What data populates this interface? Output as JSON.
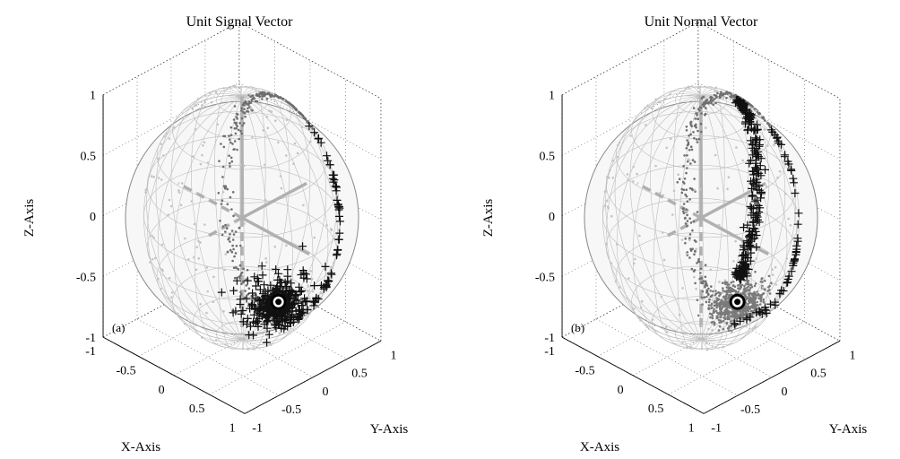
{
  "chart_data": [
    {
      "type": "scatter",
      "subtype": "3d-sphere",
      "panel_label": "(a)",
      "title": "Unit Signal Vector",
      "xlabel": "X-Axis",
      "ylabel": "Y-Axis",
      "zlabel": "Z-Axis",
      "xlim": [
        -1,
        1
      ],
      "ylim": [
        -1,
        1
      ],
      "zlim": [
        -1,
        1
      ],
      "x_ticks": [
        "-1",
        "-0.5",
        "0",
        "0.5",
        "1"
      ],
      "y_ticks": [
        "-1",
        "-0.5",
        "0",
        "0.5",
        "1"
      ],
      "z_ticks": [
        "-1",
        "-0.5",
        "0",
        "0.5",
        "1"
      ],
      "grid": true,
      "point_colors": {
        "front_plus": "#111111",
        "back_dot": "#6e6e6e",
        "light_dot": "#c4c4c4",
        "ref_axes": "#b0b0b0"
      },
      "reference_point": [
        0.85,
        -0.35,
        -0.32
      ]
    },
    {
      "type": "scatter",
      "subtype": "3d-sphere",
      "panel_label": "(b)",
      "title": "Unit Normal Vector",
      "xlabel": "X-Axis",
      "ylabel": "Y-Axis",
      "zlabel": "Z-Axis",
      "xlim": [
        -1,
        1
      ],
      "ylim": [
        -1,
        1
      ],
      "zlim": [
        -1,
        1
      ],
      "x_ticks": [
        "-1",
        "-0.5",
        "0",
        "0.5",
        "1"
      ],
      "y_ticks": [
        "-1",
        "-0.5",
        "0",
        "0.5",
        "1"
      ],
      "z_ticks": [
        "-1",
        "-0.5",
        "0",
        "0.5",
        "1"
      ],
      "grid": true,
      "point_colors": {
        "front_plus": "#111111",
        "back_dot": "#6e6e6e",
        "light_dot": "#c4c4c4",
        "ref_axes": "#b0b0b0"
      },
      "reference_point": [
        0.85,
        -0.35,
        -0.32
      ]
    }
  ]
}
